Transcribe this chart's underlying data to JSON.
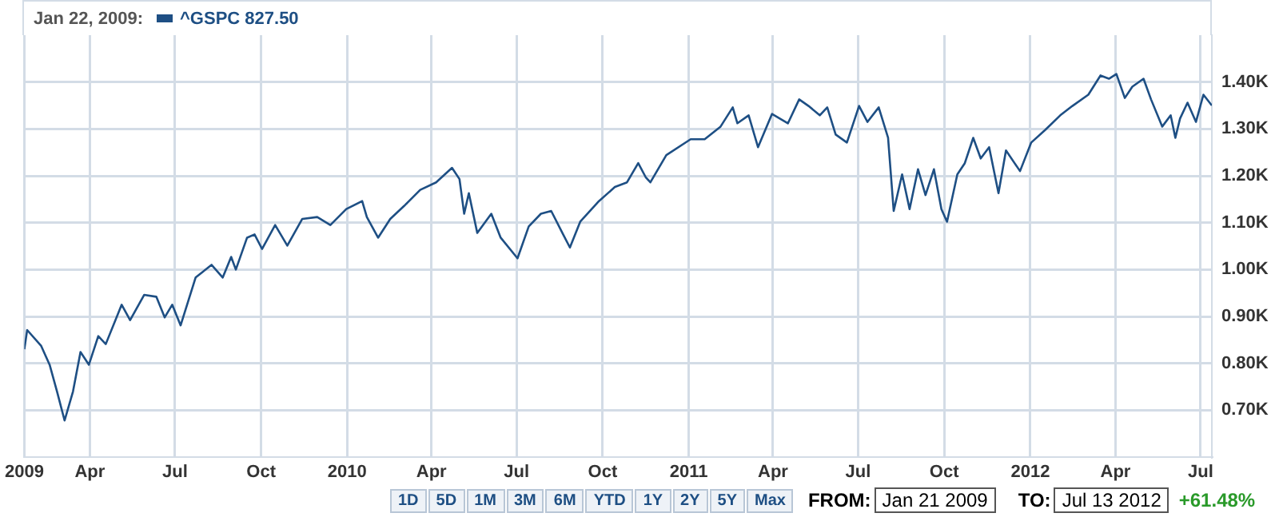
{
  "chart_data": {
    "type": "line",
    "title": "Jan 22, 2009:",
    "legend": "top left",
    "grid": true,
    "xlim": [
      "2009-01-21",
      "2012-07-13"
    ],
    "xticks": [
      {
        "value": "2009-01-21",
        "label": "2009"
      },
      {
        "value": "2009-04-01",
        "label": "Apr"
      },
      {
        "value": "2009-07-01",
        "label": "Jul"
      },
      {
        "value": "2009-10-01",
        "label": "Oct"
      },
      {
        "value": "2010-01-01",
        "label": "2010"
      },
      {
        "value": "2010-04-01",
        "label": "Apr"
      },
      {
        "value": "2010-07-01",
        "label": "Jul"
      },
      {
        "value": "2010-10-01",
        "label": "Oct"
      },
      {
        "value": "2011-01-01",
        "label": "2011"
      },
      {
        "value": "2011-04-01",
        "label": "Apr"
      },
      {
        "value": "2011-07-01",
        "label": "Jul"
      },
      {
        "value": "2011-10-01",
        "label": "Oct"
      },
      {
        "value": "2012-01-01",
        "label": "2012"
      },
      {
        "value": "2012-04-01",
        "label": "Apr"
      },
      {
        "value": "2012-07-01",
        "label": "Jul"
      }
    ],
    "ylim": [
      600,
      1500
    ],
    "yticks": [
      {
        "value": 700,
        "label": "0.70K"
      },
      {
        "value": 800,
        "label": "0.80K"
      },
      {
        "value": 900,
        "label": "0.90K"
      },
      {
        "value": 1000,
        "label": "1.00K"
      },
      {
        "value": 1100,
        "label": "1.10K"
      },
      {
        "value": 1200,
        "label": "1.20K"
      },
      {
        "value": 1300,
        "label": "1.30K"
      },
      {
        "value": 1400,
        "label": "1.40K"
      }
    ],
    "x": [
      "2009-01-21",
      "2009-01-24",
      "2009-02-08",
      "2009-02-17",
      "2009-02-25",
      "2009-03-05",
      "2009-03-14",
      "2009-03-22",
      "2009-03-31",
      "2009-04-10",
      "2009-04-18",
      "2009-05-05",
      "2009-05-14",
      "2009-05-29",
      "2009-06-11",
      "2009-06-20",
      "2009-06-28",
      "2009-07-07",
      "2009-07-23",
      "2009-08-09",
      "2009-08-21",
      "2009-08-30",
      "2009-09-04",
      "2009-09-16",
      "2009-09-24",
      "2009-10-02",
      "2009-10-16",
      "2009-10-29",
      "2009-11-14",
      "2009-11-30",
      "2009-12-14",
      "2009-12-31",
      "2010-01-17",
      "2010-01-22",
      "2010-02-03",
      "2010-02-16",
      "2010-03-03",
      "2010-03-20",
      "2010-04-06",
      "2010-04-23",
      "2010-05-01",
      "2010-05-06",
      "2010-05-11",
      "2010-05-20",
      "2010-06-04",
      "2010-06-14",
      "2010-07-02",
      "2010-07-14",
      "2010-07-27",
      "2010-08-07",
      "2010-08-19",
      "2010-08-27",
      "2010-09-07",
      "2010-09-27",
      "2010-10-14",
      "2010-10-27",
      "2010-11-08",
      "2010-11-16",
      "2010-11-21",
      "2010-12-08",
      "2011-01-03",
      "2011-01-18",
      "2011-02-04",
      "2011-02-17",
      "2011-02-22",
      "2011-03-06",
      "2011-03-16",
      "2011-03-31",
      "2011-04-17",
      "2011-04-29",
      "2011-05-09",
      "2011-05-21",
      "2011-05-29",
      "2011-06-07",
      "2011-06-19",
      "2011-07-02",
      "2011-07-11",
      "2011-07-23",
      "2011-08-02",
      "2011-08-08",
      "2011-08-17",
      "2011-08-25",
      "2011-09-03",
      "2011-09-11",
      "2011-09-20",
      "2011-09-28",
      "2011-10-04",
      "2011-10-15",
      "2011-10-23",
      "2011-11-01",
      "2011-11-09",
      "2011-11-18",
      "2011-11-28",
      "2011-12-06",
      "2011-12-21",
      "2012-01-02",
      "2012-01-17",
      "2012-02-02",
      "2012-02-15",
      "2012-03-03",
      "2012-03-16",
      "2012-03-25",
      "2012-04-02",
      "2012-04-11",
      "2012-04-19",
      "2012-05-01",
      "2012-05-09",
      "2012-05-21",
      "2012-05-30",
      "2012-06-04",
      "2012-06-09",
      "2012-06-17",
      "2012-06-26",
      "2012-07-04",
      "2012-07-13"
    ],
    "series": [
      {
        "name": "^GSPC 827.50",
        "color": "#1e4f84",
        "values": [
          830,
          871,
          837,
          797,
          739,
          678,
          740,
          824,
          797,
          858,
          841,
          925,
          892,
          946,
          942,
          898,
          925,
          881,
          983,
          1010,
          983,
          1027,
          1000,
          1068,
          1075,
          1044,
          1095,
          1051,
          1108,
          1112,
          1095,
          1129,
          1146,
          1112,
          1068,
          1108,
          1136,
          1170,
          1186,
          1217,
          1193,
          1119,
          1163,
          1078,
          1119,
          1068,
          1024,
          1092,
          1119,
          1125,
          1078,
          1047,
          1102,
          1146,
          1176,
          1186,
          1227,
          1197,
          1186,
          1244,
          1278,
          1278,
          1305,
          1346,
          1312,
          1329,
          1261,
          1332,
          1312,
          1363,
          1349,
          1329,
          1346,
          1288,
          1271,
          1349,
          1315,
          1346,
          1281,
          1125,
          1203,
          1129,
          1214,
          1159,
          1214,
          1129,
          1102,
          1203,
          1227,
          1281,
          1237,
          1261,
          1163,
          1254,
          1210,
          1271,
          1298,
          1329,
          1349,
          1373,
          1414,
          1407,
          1417,
          1366,
          1390,
          1407,
          1363,
          1305,
          1329,
          1281,
          1322,
          1356,
          1315,
          1373,
          1350
        ]
      }
    ],
    "annotations": [
      "1D",
      "5D",
      "1M",
      "3M",
      "6M",
      "YTD",
      "1Y",
      "2Y",
      "5Y",
      "Max",
      "FROM:",
      "Jan 21 2009",
      "TO:",
      "Jul 13 2012",
      "+61.48%"
    ]
  }
}
